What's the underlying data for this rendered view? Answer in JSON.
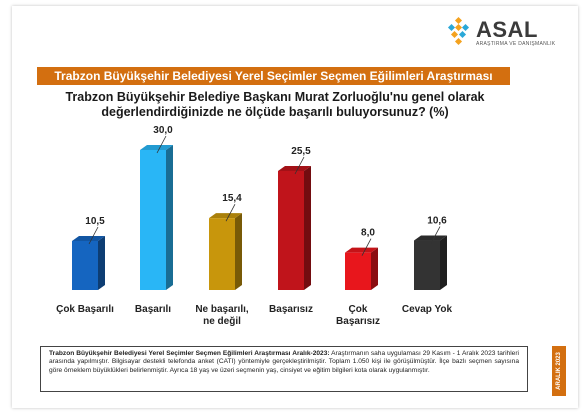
{
  "brand": {
    "name": "ASAL",
    "tagline": "ARAŞTIRMA VE DANIŞMANLIK"
  },
  "banner": "Trabzon Büyükşehir Belediyesi Yerel Seçimler Seçmen Eğilimleri Araştırması",
  "question_line1": "Trabzon Büyükşehir Belediye Başkanı Murat Zorluoğlu'nu genel olarak",
  "question_line2": "değerlendirdiğinizde ne ölçüde başarılı buluyorsunuz? (%)",
  "footnote": {
    "title": "Trabzon Büyükşehir Belediyesi Yerel Seçimler Seçmen Eğilimleri Araştırması Aralık-2023:",
    "body": "Araştırmanın saha uygulaması 29 Kasım - 1 Aralık 2023 tarihleri arasında yapılmıştır. Bilgisayar destekli telefonda anket (CATI) yöntemiyle gerçekleştirilmiştir. Toplam 1.050 kişi ile görüşülmüştür. İlçe bazlı seçmen sayısına göre örneklem büyüklükleri belirlenmiştir. Ayrıca 18 yaş ve üzeri seçmenin yaş, cinsiyet ve eğitim bilgileri kota olarak uygulanmıştır."
  },
  "date_tab": "ARALIK 2023",
  "chart_data": {
    "type": "bar",
    "categories": [
      [
        "Çok Başarılı"
      ],
      [
        "Başarılı"
      ],
      [
        "Ne başarılı,",
        "ne değil"
      ],
      [
        "Başarısız"
      ],
      [
        "Çok",
        "Başarısız"
      ],
      [
        "Cevap Yok"
      ]
    ],
    "values": [
      10.5,
      30.0,
      15.4,
      25.5,
      8.0,
      10.6
    ],
    "value_labels": [
      "10,5",
      "30,0",
      "15,4",
      "25,5",
      "8,0",
      "10,6"
    ],
    "colors": [
      "#1565c0",
      "#29b6f6",
      "#c8960c",
      "#c0141b",
      "#e8161c",
      "#333333"
    ],
    "ylim": [
      0,
      30
    ],
    "grid": false,
    "legend": "none"
  }
}
